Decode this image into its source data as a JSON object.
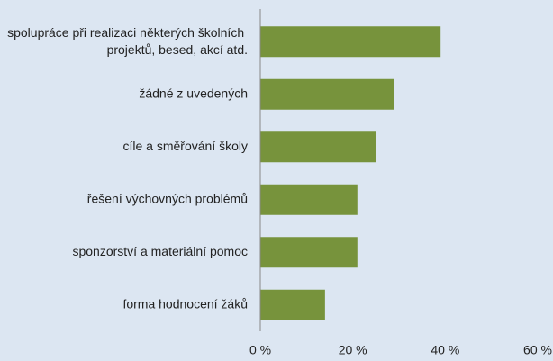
{
  "chart_data": {
    "type": "hbar",
    "categories": [
      "spolupráce při realizaci některých školních projektů, besed, akcí atd.",
      "žádné z uvedených",
      "cíle a směřování školy",
      "řešení výchovných problémů",
      "sponzorství a materiální pomoc",
      "forma hodnocení žáků"
    ],
    "values": [
      39,
      29,
      25,
      21,
      21,
      14
    ],
    "color": "#77933c",
    "xlim": [
      0,
      60
    ],
    "xticks": [
      {
        "value": 0,
        "label": "0 %"
      },
      {
        "value": 20,
        "label": "20 %"
      },
      {
        "value": 40,
        "label": "40 %"
      },
      {
        "value": 60,
        "label": "60 %"
      }
    ],
    "grid": false
  }
}
